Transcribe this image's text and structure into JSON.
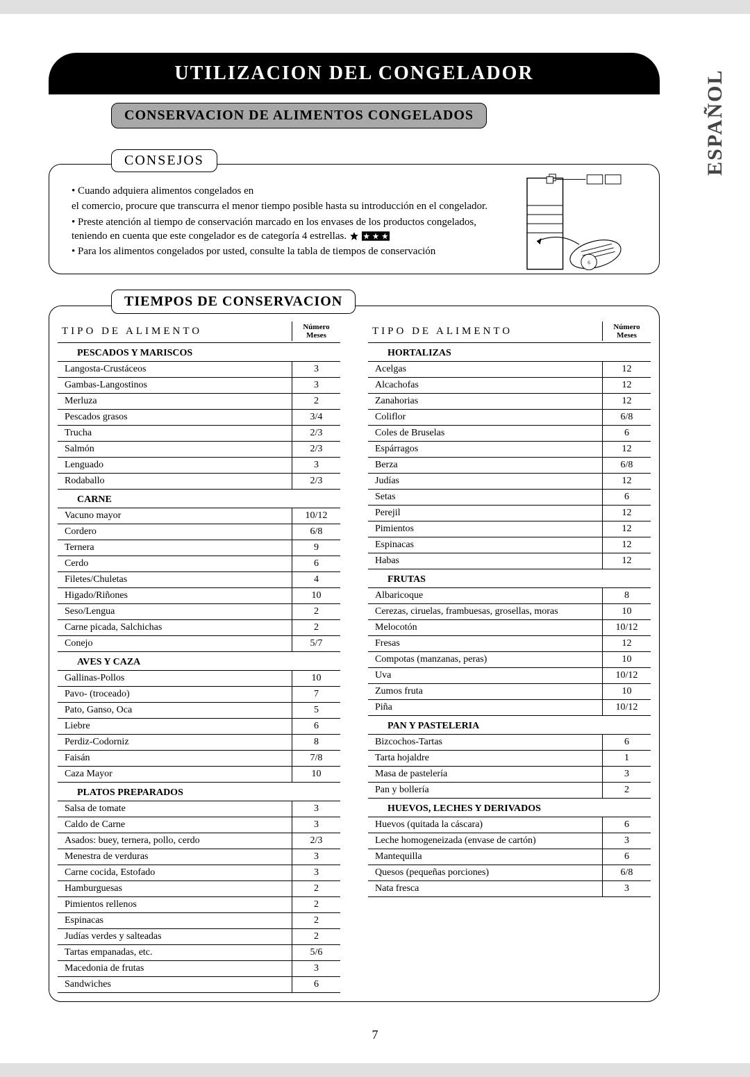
{
  "page_number": "7",
  "language_tab": "ESPAÑOL",
  "title": "UTILIZACION DEL CONGELADOR",
  "subheading": "CONSERVACION DE ALIMENTOS CONGELADOS",
  "consejos": {
    "label": "CONSEJOS",
    "lines": [
      "• Cuando adquiera alimentos congelados en",
      "el comercio, procure que transcurra el menor tiempo posible hasta su introducción en el congelador.",
      "• Preste atención al tiempo de conservación marcado en los envases de los productos congelados, teniendo en cuenta que este congelador es de categoría 4 estrellas.",
      "• Para los alimentos congelados por usted, consulte la tabla de tiempos de conservación"
    ]
  },
  "tiempos_label": "TIEMPOS DE CONSERVACION",
  "col_header_left": "TIPO DE ALIMENTO",
  "col_header_right_l1": "Número",
  "col_header_right_l2": "Meses",
  "left": {
    "g1": {
      "cat": "PESCADOS Y MARISCOS",
      "rows": [
        {
          "n": "Langosta-Crustáceos",
          "v": "3"
        },
        {
          "n": "Gambas-Langostinos",
          "v": "3"
        },
        {
          "n": "Merluza",
          "v": "2"
        },
        {
          "n": "Pescados grasos",
          "v": "3/4"
        },
        {
          "n": "Trucha",
          "v": "2/3"
        },
        {
          "n": "Salmón",
          "v": "2/3"
        },
        {
          "n": "Lenguado",
          "v": "3"
        },
        {
          "n": "Rodaballo",
          "v": "2/3"
        }
      ]
    },
    "g2": {
      "cat": "CARNE",
      "rows": [
        {
          "n": "Vacuno mayor",
          "v": "10/12"
        },
        {
          "n": "Cordero",
          "v": "6/8"
        },
        {
          "n": "Ternera",
          "v": "9"
        },
        {
          "n": "Cerdo",
          "v": "6"
        },
        {
          "n": "Filetes/Chuletas",
          "v": "4"
        },
        {
          "n": "Higado/Riñones",
          "v": "10"
        },
        {
          "n": "Seso/Lengua",
          "v": "2"
        },
        {
          "n": "Carne picada, Salchichas",
          "v": "2"
        },
        {
          "n": "Conejo",
          "v": "5/7"
        }
      ]
    },
    "g3": {
      "cat": "AVES Y CAZA",
      "rows": [
        {
          "n": "Gallinas-Pollos",
          "v": "10"
        },
        {
          "n": "Pavo- (troceado)",
          "v": "7"
        },
        {
          "n": "Pato, Ganso, Oca",
          "v": "5"
        },
        {
          "n": "Liebre",
          "v": "6"
        },
        {
          "n": "Perdiz-Codorniz",
          "v": "8"
        },
        {
          "n": "Faisán",
          "v": "7/8"
        },
        {
          "n": "Caza Mayor",
          "v": "10"
        }
      ]
    },
    "g4": {
      "cat": "PLATOS PREPARADOS",
      "rows": [
        {
          "n": "Salsa de tomate",
          "v": "3"
        },
        {
          "n": "Caldo de Carne",
          "v": "3"
        },
        {
          "n": "Asados: buey, ternera, pollo, cerdo",
          "v": "2/3"
        },
        {
          "n": "Menestra de verduras",
          "v": "3"
        },
        {
          "n": "Carne cocida, Estofado",
          "v": "3"
        },
        {
          "n": "Hamburguesas",
          "v": "2"
        },
        {
          "n": "Pimientos rellenos",
          "v": "2"
        },
        {
          "n": "Espinacas",
          "v": "2"
        },
        {
          "n": "Judías verdes y salteadas",
          "v": "2"
        },
        {
          "n": "Tartas empanadas, etc.",
          "v": "5/6"
        },
        {
          "n": "Macedonia de frutas",
          "v": "3"
        },
        {
          "n": "Sandwiches",
          "v": "6"
        }
      ]
    }
  },
  "right": {
    "g1": {
      "cat": "HORTALIZAS",
      "rows": [
        {
          "n": "Acelgas",
          "v": "12"
        },
        {
          "n": "Alcachofas",
          "v": "12"
        },
        {
          "n": "Zanahorias",
          "v": "12"
        },
        {
          "n": "Coliflor",
          "v": "6/8"
        },
        {
          "n": "Coles de Bruselas",
          "v": "6"
        },
        {
          "n": "Espárragos",
          "v": "12"
        },
        {
          "n": "Berza",
          "v": "6/8"
        },
        {
          "n": "Judías",
          "v": "12"
        },
        {
          "n": "Setas",
          "v": "6"
        },
        {
          "n": "Perejil",
          "v": "12"
        },
        {
          "n": "Pimientos",
          "v": "12"
        },
        {
          "n": "Espinacas",
          "v": "12"
        },
        {
          "n": "Habas",
          "v": "12"
        }
      ]
    },
    "g2": {
      "cat": "FRUTAS",
      "rows": [
        {
          "n": "Albaricoque",
          "v": "8"
        },
        {
          "n": "Cerezas, ciruelas, frambuesas, grosellas, moras",
          "v": "10"
        },
        {
          "n": "Melocotón",
          "v": "10/12"
        },
        {
          "n": "Fresas",
          "v": "12"
        },
        {
          "n": "Compotas (manzanas, peras)",
          "v": "10"
        },
        {
          "n": "Uva",
          "v": "10/12"
        },
        {
          "n": "Zumos fruta",
          "v": "10"
        },
        {
          "n": "Piña",
          "v": "10/12"
        }
      ]
    },
    "g3": {
      "cat": "PAN Y PASTELERIA",
      "rows": [
        {
          "n": "Bizcochos-Tartas",
          "v": "6"
        },
        {
          "n": "Tarta hojaldre",
          "v": "1"
        },
        {
          "n": "Masa de pastelería",
          "v": "3"
        },
        {
          "n": "Pan y bollería",
          "v": "2"
        }
      ]
    },
    "g4": {
      "cat": "HUEVOS, LECHES Y DERIVADOS",
      "rows": [
        {
          "n": "Huevos (quitada la cáscara)",
          "v": "6"
        },
        {
          "n": "Leche homogeneizada (envase de cartón)",
          "v": "3"
        },
        {
          "n": "Mantequilla",
          "v": "6"
        },
        {
          "n": "Quesos (pequeñas porciones)",
          "v": "6/8"
        },
        {
          "n": "Nata fresca",
          "v": "3"
        }
      ]
    }
  }
}
